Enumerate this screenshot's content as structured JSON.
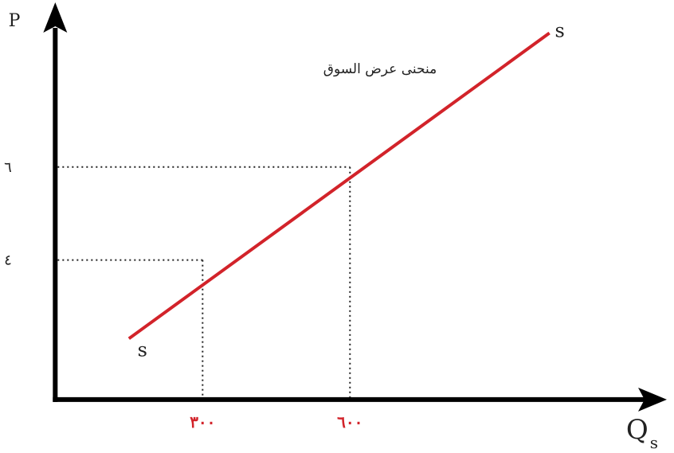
{
  "chart_data": {
    "type": "line",
    "title": "",
    "xlabel": "Q",
    "xlabel_subscript": "s",
    "ylabel": "P",
    "series": [
      {
        "name": "s",
        "color": "#d2232a",
        "start": {
          "x": 150,
          "y": 2.31
        },
        "end": {
          "x": 1006,
          "y": 8.88
        },
        "start_label": "s",
        "end_label": "s"
      }
    ],
    "reference_points": [
      {
        "x": 300,
        "y": 4,
        "x_tick_label": "٣٠٠",
        "y_tick_label": "٤"
      },
      {
        "x": 600,
        "y": 6,
        "x_tick_label": "٦٠٠",
        "y_tick_label": "٦"
      }
    ],
    "annotation": "منحنى عرض السوق",
    "x_tick_color": "#d2232a",
    "y_tick_color": "#222222",
    "axis_color": "#000000",
    "xlim": [
      -20,
      1245
    ],
    "ylim": [
      0.98,
      9.54
    ],
    "grid": false,
    "legend": "none"
  }
}
